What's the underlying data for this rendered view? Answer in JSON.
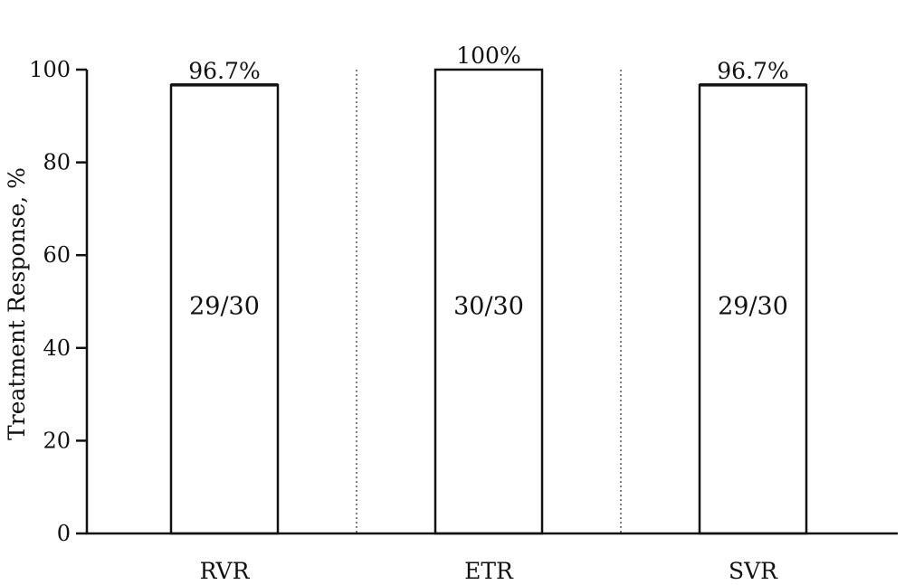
{
  "chart_data": {
    "type": "bar",
    "categories": [
      "RVR",
      "ETR",
      "SVR"
    ],
    "values": [
      96.7,
      100,
      96.7
    ],
    "value_labels": [
      "96.7%",
      "100%",
      "96.7%"
    ],
    "inner_labels": [
      "29/30",
      "30/30",
      "29/30"
    ],
    "title": "",
    "xlabel": "",
    "ylabel": "Treatment Response, %",
    "ylim": [
      0,
      100
    ],
    "yticks": [
      0,
      20,
      40,
      60,
      80,
      100
    ],
    "grid": false,
    "category_separators": "dotted",
    "bar_fill": "#ffffff",
    "bar_stroke": "#111111"
  }
}
